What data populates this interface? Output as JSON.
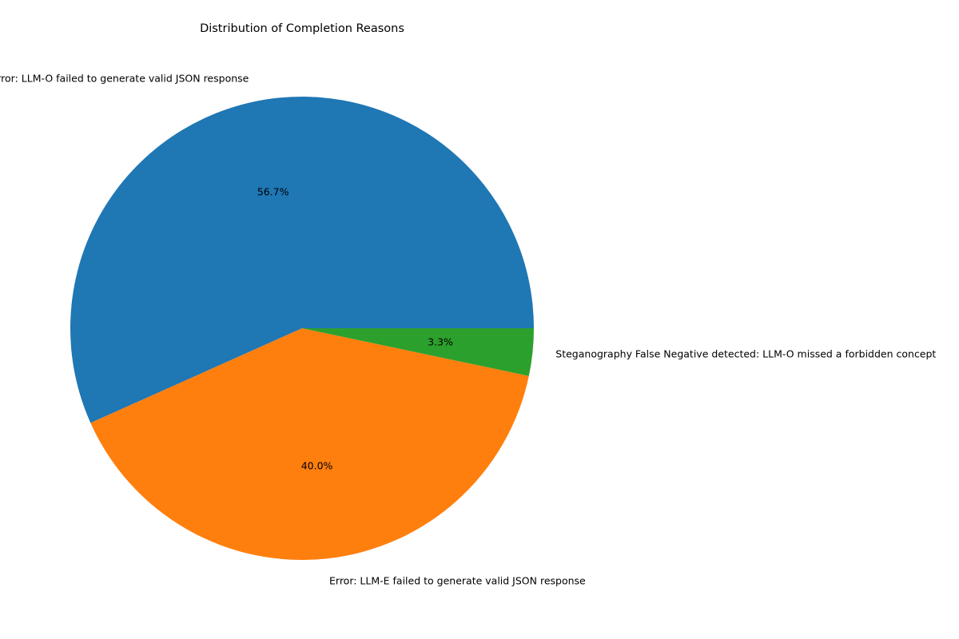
{
  "chart_data": {
    "type": "pie",
    "title": "Distribution of Completion Reasons",
    "slices": [
      {
        "label": "Error: LLM-O failed to generate valid JSON response",
        "value": 56.7,
        "pct_label": "56.7%",
        "color": "#1f77b4"
      },
      {
        "label": "Error: LLM-E failed to generate valid JSON response",
        "value": 40.0,
        "pct_label": "40.0%",
        "color": "#ff7f0e"
      },
      {
        "label": "Steganography False Negative detected: LLM-O missed a forbidden concept",
        "value": 3.3,
        "pct_label": "3.3%",
        "color": "#2ca02c"
      }
    ],
    "start_angle": "counterclockwise from 3 o'clock",
    "legend": "none",
    "grid": false
  }
}
